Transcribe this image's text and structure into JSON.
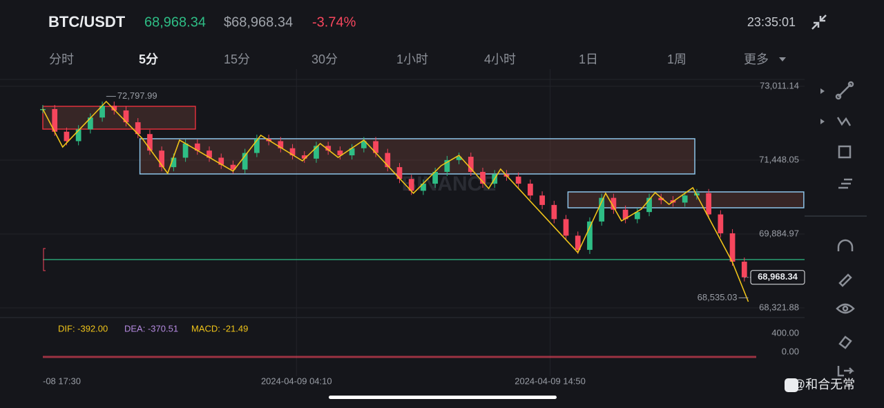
{
  "header": {
    "symbol": "BTC/USDT",
    "price": "68,968.34",
    "usd_price": "$68,968.34",
    "change": "-3.74%",
    "time": "23:35:01"
  },
  "intervals": [
    "分时",
    "5分",
    "15分",
    "30分",
    "1小时",
    "4小时",
    "1日",
    "1周",
    "更多"
  ],
  "active_interval": 1,
  "watermark": "BINANCE",
  "indicator": {
    "dif": "DIF: -392.00",
    "dea": "DEA: -370.51",
    "macd": "MACD: -21.49",
    "ticks": [
      "400.00",
      "0.00"
    ]
  },
  "footer": "@和合无常",
  "chart_data": {
    "type": "candlestick",
    "xlim": [
      0,
      360
    ],
    "ylim": [
      68117,
      73157
    ],
    "xticks": [
      {
        "value": 0,
        "label": "-08 17:30"
      },
      {
        "value": 128,
        "label": "2024-04-09 04:10"
      },
      {
        "value": 256,
        "label": "2024-04-09 14:50"
      }
    ],
    "yticks": [
      {
        "value": 73011.14,
        "label": "73,011.14"
      },
      {
        "value": 71448.05,
        "label": "71,448.05"
      },
      {
        "value": 69884.97,
        "label": "69,884.97"
      },
      {
        "value": 68321.88,
        "label": "68,321.88"
      }
    ],
    "grid": true,
    "up_color": "#2ebd85",
    "down_color": "#f6465d",
    "x": [
      0,
      6,
      12,
      18,
      24,
      30,
      36,
      42,
      48,
      54,
      60,
      66,
      72,
      78,
      84,
      90,
      96,
      102,
      108,
      114,
      120,
      126,
      132,
      138,
      144,
      150,
      156,
      162,
      168,
      174,
      180,
      186,
      192,
      198,
      204,
      210,
      216,
      222,
      228,
      234,
      240,
      246,
      252,
      258,
      264,
      270,
      276,
      282,
      288,
      294,
      300,
      306,
      312,
      318,
      324,
      330,
      336,
      342,
      348,
      354
    ],
    "values": [
      72529,
      72050,
      71850,
      72100,
      72350,
      72600,
      72500,
      72250,
      72000,
      71650,
      71300,
      71500,
      71800,
      71650,
      71500,
      71350,
      71250,
      71600,
      71900,
      71850,
      71700,
      71550,
      71480,
      71750,
      71650,
      71550,
      71700,
      71850,
      71600,
      71300,
      71050,
      70800,
      70950,
      71200,
      71450,
      71520,
      71200,
      70950,
      71150,
      71100,
      70950,
      70700,
      70500,
      70200,
      69850,
      69550,
      70150,
      70650,
      70400,
      70200,
      70350,
      70650,
      70600,
      70550,
      70700,
      70750,
      70300,
      69900,
      69300,
      68969
    ],
    "zigzag": {
      "color": "#f0c419",
      "x": [
        0,
        10,
        32,
        50,
        63,
        69,
        96,
        110,
        131,
        140,
        149,
        162,
        187,
        201,
        210,
        225,
        231,
        270,
        284,
        292,
        302,
        309,
        316,
        328,
        348,
        356
      ],
      "values": [
        72529,
        71726,
        72690,
        71915,
        71170,
        71872,
        71214,
        71974,
        71433,
        71799,
        71506,
        71872,
        70747,
        71331,
        71550,
        70849,
        71258,
        69491,
        70747,
        70162,
        70411,
        70761,
        70513,
        70864,
        69286,
        68453
      ]
    },
    "zones": [
      {
        "color": "#e0313c",
        "x": [
          0,
          77
        ],
        "values": [
          72587,
          72105
        ]
      },
      {
        "color": "#8ec5ea",
        "x": [
          49,
          329
        ],
        "values": [
          71901,
          71156
        ]
      },
      {
        "color": "#8ec5ea",
        "x": [
          265,
          384
        ],
        "values": [
          70776,
          70440
        ]
      }
    ],
    "level": {
      "color": "#2ebd85",
      "value": 69344
    },
    "annotations": [
      {
        "x": 32,
        "value": 72797.99,
        "label": "72,797.99"
      },
      {
        "x": 356,
        "value": 68535.03,
        "label": "68,535.03"
      }
    ],
    "current_price": {
      "value": 68968.34,
      "label": "68,968.34"
    }
  }
}
